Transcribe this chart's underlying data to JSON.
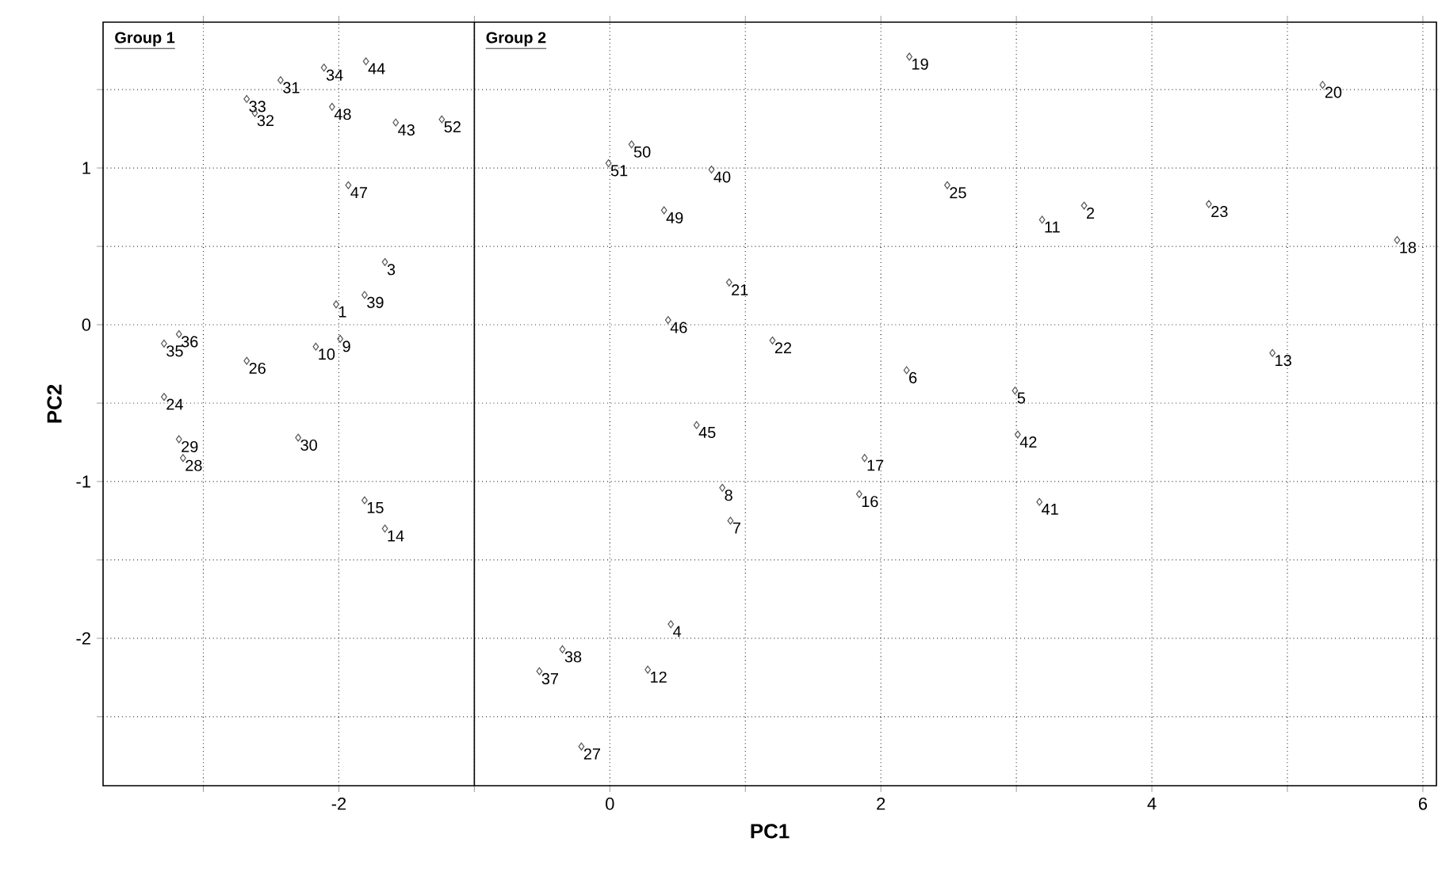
{
  "chart_data": {
    "type": "scatter",
    "xlabel": "PC1",
    "ylabel": "PC2",
    "marker": "diamond",
    "grid": true,
    "xlim": [
      -3.74,
      6.1
    ],
    "ylim": [
      -2.94,
      1.93
    ],
    "xticks": [
      {
        "value": -3,
        "label": null
      },
      -2,
      {
        "value": -1,
        "label": null
      },
      0,
      {
        "value": 1,
        "label": null
      },
      2,
      {
        "value": 3,
        "label": null
      },
      4,
      {
        "value": 5,
        "label": null
      },
      6
    ],
    "yticks": [
      {
        "value": -2.5,
        "label": null
      },
      -2,
      {
        "value": -1.5,
        "label": null
      },
      -1,
      {
        "value": -0.5,
        "label": null
      },
      0,
      {
        "value": 0.5,
        "label": null
      },
      1,
      {
        "value": 1.5,
        "label": null
      }
    ],
    "ref_lines": [
      {
        "axis": "x",
        "value": -1,
        "color": "#000000",
        "line_style": "solid"
      }
    ],
    "series": [
      {
        "color": "#555555",
        "x": [
          -1.8,
          -2.11,
          -2.43,
          -2.68,
          -2.62,
          -2.05,
          -1.58,
          -1.24,
          -1.93,
          -1.66,
          -1.81,
          -2.02,
          -3.18,
          -3.29,
          -2.17,
          -1.99,
          -2.68,
          -3.29,
          -3.18,
          -3.15,
          -2.3,
          -1.81,
          -1.66,
          2.21,
          0.16,
          -0.01,
          0.75,
          2.49,
          0.4,
          0.88,
          0.43,
          1.2,
          2.19,
          0.64,
          5.26,
          3.5,
          3.19,
          4.42,
          5.81,
          4.89,
          2.99,
          3.01,
          3.17,
          1.88,
          1.84,
          0.83,
          0.89,
          0.45,
          -0.35,
          -0.52,
          0.28,
          -0.21
        ],
        "values": [
          1.68,
          1.64,
          1.56,
          1.44,
          1.35,
          1.39,
          1.29,
          1.31,
          0.89,
          0.4,
          0.19,
          0.13,
          -0.06,
          -0.12,
          -0.14,
          -0.09,
          -0.23,
          -0.46,
          -0.73,
          -0.85,
          -0.72,
          -1.12,
          -1.3,
          1.71,
          1.15,
          1.03,
          0.99,
          0.89,
          0.73,
          0.27,
          0.03,
          -0.1,
          -0.29,
          -0.64,
          1.53,
          0.76,
          0.67,
          0.77,
          0.54,
          -0.18,
          -0.42,
          -0.7,
          -1.13,
          -0.85,
          -1.08,
          -1.04,
          -1.25,
          -1.91,
          -2.07,
          -2.21,
          -2.2,
          -2.69
        ]
      }
    ],
    "annotations": [
      "Group 1",
      "Group 2",
      {
        "text": "44",
        "x": -1.8,
        "y": 1.68
      },
      {
        "text": "34",
        "x": -2.11,
        "y": 1.64
      },
      {
        "text": "31",
        "x": -2.43,
        "y": 1.56
      },
      {
        "text": "33",
        "x": -2.68,
        "y": 1.44
      },
      {
        "text": "32",
        "x": -2.62,
        "y": 1.35
      },
      {
        "text": "48",
        "x": -2.05,
        "y": 1.39
      },
      {
        "text": "43",
        "x": -1.58,
        "y": 1.29
      },
      {
        "text": "52",
        "x": -1.24,
        "y": 1.31
      },
      {
        "text": "47",
        "x": -1.93,
        "y": 0.89
      },
      {
        "text": "3",
        "x": -1.66,
        "y": 0.4
      },
      {
        "text": "39",
        "x": -1.81,
        "y": 0.19
      },
      {
        "text": "1",
        "x": -2.02,
        "y": 0.13
      },
      {
        "text": "36",
        "x": -3.18,
        "y": -0.06
      },
      {
        "text": "35",
        "x": -3.29,
        "y": -0.12
      },
      {
        "text": "10",
        "x": -2.17,
        "y": -0.14
      },
      {
        "text": "9",
        "x": -1.99,
        "y": -0.09
      },
      {
        "text": "26",
        "x": -2.68,
        "y": -0.23
      },
      {
        "text": "24",
        "x": -3.29,
        "y": -0.46
      },
      {
        "text": "29",
        "x": -3.18,
        "y": -0.73
      },
      {
        "text": "28",
        "x": -3.15,
        "y": -0.85
      },
      {
        "text": "30",
        "x": -2.3,
        "y": -0.72
      },
      {
        "text": "15",
        "x": -1.81,
        "y": -1.12
      },
      {
        "text": "14",
        "x": -1.66,
        "y": -1.3
      },
      {
        "text": "19",
        "x": 2.21,
        "y": 1.71
      },
      {
        "text": "50",
        "x": 0.16,
        "y": 1.15
      },
      {
        "text": "51",
        "x": -0.01,
        "y": 1.03
      },
      {
        "text": "40",
        "x": 0.75,
        "y": 0.99
      },
      {
        "text": "25",
        "x": 2.49,
        "y": 0.89
      },
      {
        "text": "49",
        "x": 0.4,
        "y": 0.73
      },
      {
        "text": "21",
        "x": 0.88,
        "y": 0.27
      },
      {
        "text": "46",
        "x": 0.43,
        "y": 0.03
      },
      {
        "text": "22",
        "x": 1.2,
        "y": -0.1
      },
      {
        "text": "6",
        "x": 2.19,
        "y": -0.29
      },
      {
        "text": "45",
        "x": 0.64,
        "y": -0.64
      },
      {
        "text": "20",
        "x": 5.26,
        "y": 1.53
      },
      {
        "text": "2",
        "x": 3.5,
        "y": 0.76
      },
      {
        "text": "11",
        "x": 3.19,
        "y": 0.67
      },
      {
        "text": "23",
        "x": 4.42,
        "y": 0.77
      },
      {
        "text": "18",
        "x": 5.81,
        "y": 0.54
      },
      {
        "text": "13",
        "x": 4.89,
        "y": -0.18
      },
      {
        "text": "5",
        "x": 2.99,
        "y": -0.42
      },
      {
        "text": "42",
        "x": 3.01,
        "y": -0.7
      },
      {
        "text": "41",
        "x": 3.17,
        "y": -1.13
      },
      {
        "text": "17",
        "x": 1.88,
        "y": -0.85
      },
      {
        "text": "16",
        "x": 1.84,
        "y": -1.08
      },
      {
        "text": "8",
        "x": 0.83,
        "y": -1.04
      },
      {
        "text": "7",
        "x": 0.89,
        "y": -1.25
      },
      {
        "text": "4",
        "x": 0.45,
        "y": -1.91
      },
      {
        "text": "38",
        "x": -0.35,
        "y": -2.07
      },
      {
        "text": "37",
        "x": -0.52,
        "y": -2.21
      },
      {
        "text": "12",
        "x": 0.28,
        "y": -2.2
      },
      {
        "text": "27",
        "x": -0.21,
        "y": -2.69
      }
    ]
  }
}
